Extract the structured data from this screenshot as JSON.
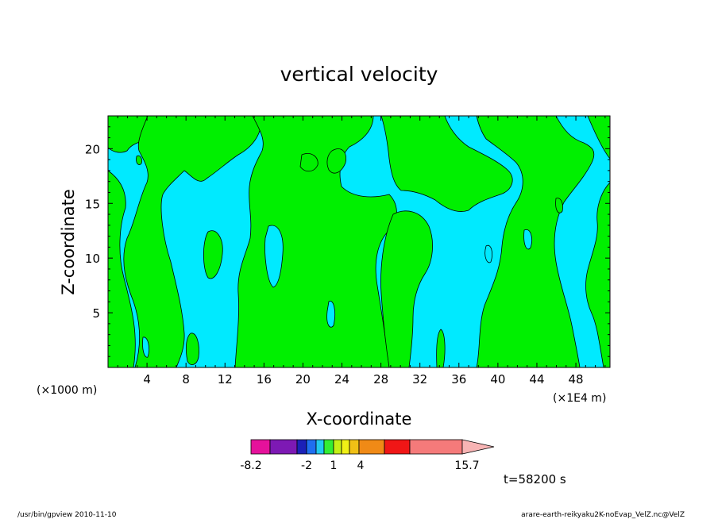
{
  "chart_data": {
    "type": "heatmap",
    "title": "vertical velocity",
    "xlabel": "X-coordinate",
    "ylabel": "Z-coordinate",
    "x_unit_left": "(×1000 m)",
    "x_unit_right": "(×1E4 m)",
    "xlim": [
      0,
      51.5
    ],
    "ylim": [
      0,
      23
    ],
    "xticks": [
      "4",
      "8",
      "12",
      "16",
      "20",
      "24",
      "28",
      "32",
      "36",
      "40",
      "44",
      "48"
    ],
    "yticks": [
      "5",
      "10",
      "15",
      "20"
    ],
    "colorbar": {
      "tick_labels": [
        "-8.2",
        "-2",
        "1",
        "4",
        "15.7"
      ],
      "colors": [
        "#e5119b",
        "#7d19b4",
        "#1b21b8",
        "#1f6ff0",
        "#22c9f0",
        "#33ee33",
        "#c5f016",
        "#f0f016",
        "#f0c016",
        "#f08a16",
        "#f01616",
        "#f57a7a",
        "#f7b4b4"
      ]
    },
    "field_colors": {
      "negative": "#00eaff",
      "positive": "#00f000"
    },
    "time_label": "t=58200 s"
  },
  "footer": {
    "left": "/usr/bin/gpview  2010-11-10",
    "right": "arare-earth-reikyaku2K-noEvap_VelZ.nc@VelZ"
  }
}
